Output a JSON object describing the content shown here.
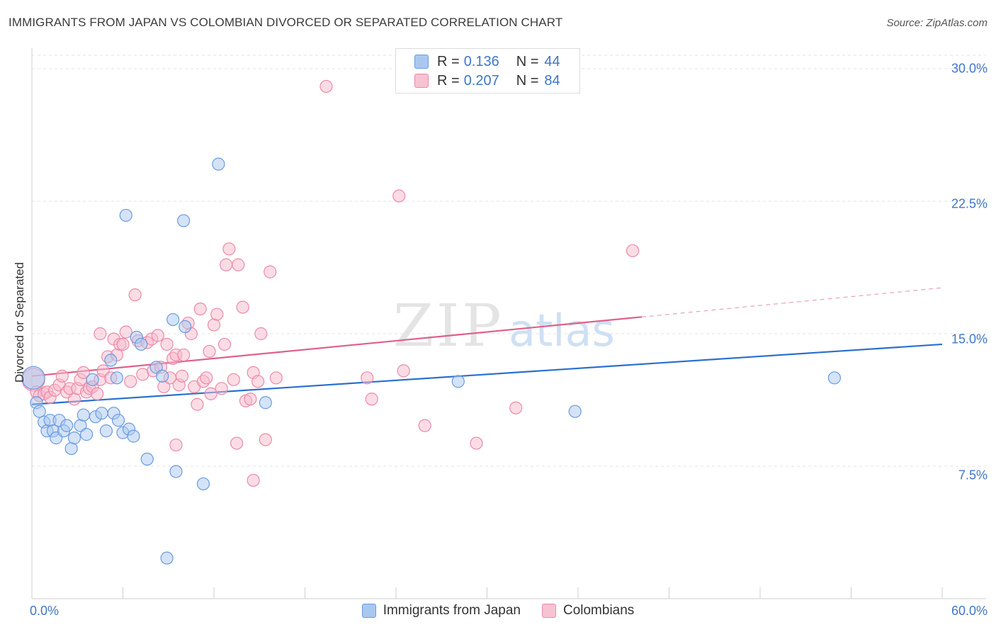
{
  "header": {
    "title": "IMMIGRANTS FROM JAPAN VS COLOMBIAN DIVORCED OR SEPARATED CORRELATION CHART",
    "source": "Source: ZipAtlas.com"
  },
  "watermark": {
    "zip": "ZIP",
    "atlas": "atlas"
  },
  "legend_top": [
    {
      "r_label": "R =",
      "r_value": "0.136",
      "n_label": "N =",
      "n_value": "44"
    },
    {
      "r_label": "R =",
      "r_value": "0.207",
      "n_label": "N =",
      "n_value": "84"
    }
  ],
  "legend_bottom": [
    "Immigrants from Japan",
    "Colombians"
  ],
  "colors": {
    "blue_fill": "#a9c8f0",
    "blue_stroke": "#6b9be0",
    "blue_line": "#2a6fd0",
    "pink_fill": "#f7b9cc",
    "pink_stroke": "#ec8aa9",
    "pink_line": "#e0608a",
    "tick_text": "#3f76c8",
    "grid": "#e3e3e3"
  },
  "chart_data": {
    "type": "scatter",
    "title": "IMMIGRANTS FROM JAPAN VS COLOMBIAN DIVORCED OR SEPARATED CORRELATION CHART",
    "xlabel": "",
    "ylabel": "Divorced or Separated",
    "xlim": [
      0,
      60
    ],
    "ylim": [
      0,
      31.5
    ],
    "x_tick_labels": [
      "0.0%",
      "60.0%"
    ],
    "y_ticks": [
      7.5,
      15.0,
      22.5,
      30.0
    ],
    "y_tick_labels": [
      "7.5%",
      "15.0%",
      "22.5%",
      "30.0%"
    ],
    "grid": true,
    "legend_position": "top-center",
    "series": [
      {
        "name": "Immigrants from Japan",
        "R": 0.136,
        "N": 44,
        "trend": {
          "x": [
            0,
            60
          ],
          "y": [
            11.0,
            14.4
          ],
          "dashed_from": null
        },
        "points": [
          [
            0.1,
            12.5
          ],
          [
            0.3,
            11.1
          ],
          [
            0.5,
            10.6
          ],
          [
            0.8,
            10.0
          ],
          [
            1.0,
            9.5
          ],
          [
            1.2,
            10.1
          ],
          [
            1.4,
            9.5
          ],
          [
            1.6,
            9.1
          ],
          [
            1.8,
            10.1
          ],
          [
            2.1,
            9.5
          ],
          [
            2.3,
            9.8
          ],
          [
            2.6,
            8.5
          ],
          [
            2.8,
            9.1
          ],
          [
            3.2,
            9.8
          ],
          [
            3.4,
            10.4
          ],
          [
            3.6,
            9.3
          ],
          [
            4.0,
            12.4
          ],
          [
            4.2,
            10.3
          ],
          [
            4.6,
            10.5
          ],
          [
            4.9,
            9.5
          ],
          [
            5.2,
            13.5
          ],
          [
            5.4,
            10.5
          ],
          [
            5.7,
            10.1
          ],
          [
            6.0,
            9.4
          ],
          [
            6.4,
            9.6
          ],
          [
            6.7,
            9.2
          ],
          [
            5.6,
            12.5
          ],
          [
            6.9,
            14.8
          ],
          [
            7.2,
            14.4
          ],
          [
            6.2,
            21.7
          ],
          [
            7.6,
            7.9
          ],
          [
            8.2,
            13.1
          ],
          [
            8.6,
            12.6
          ],
          [
            8.9,
            2.3
          ],
          [
            9.3,
            15.8
          ],
          [
            9.5,
            7.2
          ],
          [
            10.0,
            21.4
          ],
          [
            10.1,
            15.4
          ],
          [
            11.3,
            6.5
          ],
          [
            12.3,
            24.6
          ],
          [
            15.4,
            11.1
          ],
          [
            28.1,
            12.3
          ],
          [
            35.8,
            10.6
          ],
          [
            52.9,
            12.5
          ]
        ]
      },
      {
        "name": "Colombians",
        "R": 0.207,
        "N": 84,
        "trend": {
          "x": [
            0,
            60
          ],
          "y": [
            12.6,
            17.6
          ],
          "dashed_from": 40.2
        },
        "points": [
          [
            0.1,
            12.4
          ],
          [
            0.3,
            11.7
          ],
          [
            0.5,
            11.5
          ],
          [
            0.8,
            11.6
          ],
          [
            1.0,
            11.7
          ],
          [
            1.2,
            11.4
          ],
          [
            1.5,
            11.8
          ],
          [
            1.8,
            12.1
          ],
          [
            2.0,
            12.6
          ],
          [
            2.3,
            11.7
          ],
          [
            2.5,
            11.9
          ],
          [
            2.8,
            11.3
          ],
          [
            3.0,
            11.9
          ],
          [
            3.2,
            12.4
          ],
          [
            3.4,
            12.8
          ],
          [
            3.6,
            11.7
          ],
          [
            3.8,
            11.9
          ],
          [
            4.0,
            12.0
          ],
          [
            4.3,
            11.6
          ],
          [
            4.5,
            12.4
          ],
          [
            4.7,
            12.9
          ],
          [
            4.5,
            15.0
          ],
          [
            5.0,
            13.7
          ],
          [
            5.2,
            12.5
          ],
          [
            5.4,
            14.7
          ],
          [
            5.6,
            13.8
          ],
          [
            5.8,
            14.4
          ],
          [
            6.0,
            14.4
          ],
          [
            6.2,
            15.1
          ],
          [
            6.5,
            12.3
          ],
          [
            6.8,
            17.2
          ],
          [
            7.0,
            14.6
          ],
          [
            7.3,
            12.7
          ],
          [
            7.6,
            14.5
          ],
          [
            7.9,
            14.7
          ],
          [
            8.0,
            12.9
          ],
          [
            8.3,
            14.9
          ],
          [
            8.5,
            13.1
          ],
          [
            8.7,
            12.0
          ],
          [
            8.9,
            14.4
          ],
          [
            9.1,
            12.5
          ],
          [
            9.3,
            13.6
          ],
          [
            9.5,
            13.8
          ],
          [
            9.7,
            12.1
          ],
          [
            9.9,
            12.6
          ],
          [
            10.0,
            13.8
          ],
          [
            10.3,
            15.6
          ],
          [
            10.5,
            15.0
          ],
          [
            10.7,
            12.0
          ],
          [
            10.9,
            11.0
          ],
          [
            11.1,
            16.4
          ],
          [
            11.3,
            12.3
          ],
          [
            11.5,
            12.5
          ],
          [
            11.7,
            14.0
          ],
          [
            12.0,
            15.5
          ],
          [
            12.2,
            16.1
          ],
          [
            12.5,
            11.9
          ],
          [
            12.8,
            18.9
          ],
          [
            13.0,
            19.8
          ],
          [
            13.3,
            12.4
          ],
          [
            13.6,
            18.9
          ],
          [
            13.9,
            16.5
          ],
          [
            14.1,
            11.2
          ],
          [
            14.4,
            11.3
          ],
          [
            14.6,
            12.8
          ],
          [
            14.9,
            12.3
          ],
          [
            15.1,
            15.0
          ],
          [
            15.4,
            9.0
          ],
          [
            15.7,
            18.5
          ],
          [
            16.1,
            12.5
          ],
          [
            12.7,
            14.4
          ],
          [
            13.5,
            8.8
          ],
          [
            9.5,
            8.7
          ],
          [
            14.6,
            6.7
          ],
          [
            19.4,
            29.0
          ],
          [
            22.1,
            12.5
          ],
          [
            22.4,
            11.3
          ],
          [
            24.2,
            22.8
          ],
          [
            24.5,
            12.9
          ],
          [
            25.9,
            9.8
          ],
          [
            29.3,
            8.8
          ],
          [
            31.9,
            10.8
          ],
          [
            39.6,
            19.7
          ],
          [
            11.8,
            11.6
          ]
        ]
      }
    ]
  }
}
